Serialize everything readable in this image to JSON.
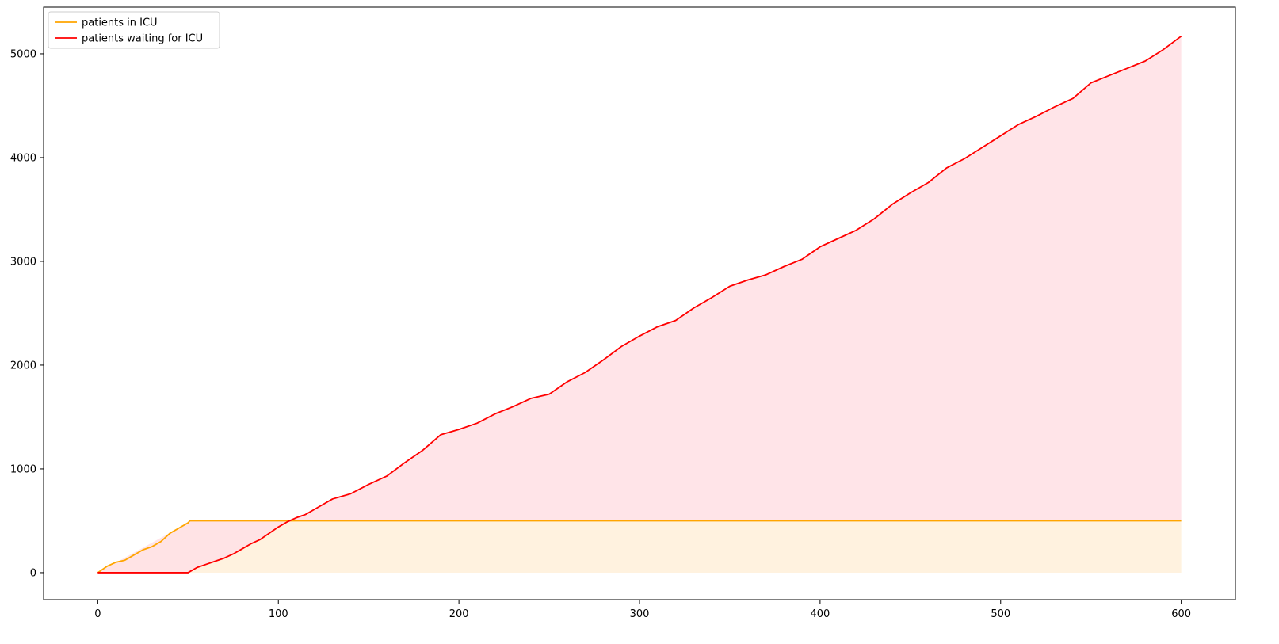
{
  "chart_data": {
    "type": "line",
    "title": "",
    "xlabel": "",
    "ylabel": "",
    "xlim": [
      -30,
      630
    ],
    "ylim": [
      -260,
      5450
    ],
    "xticks": [
      0,
      100,
      200,
      300,
      400,
      500,
      600
    ],
    "yticks": [
      0,
      1000,
      2000,
      3000,
      4000,
      5000
    ],
    "grid": false,
    "legend": {
      "placement": "top-left",
      "entries": [
        "patients in ICU",
        "patients waiting for ICU"
      ]
    },
    "fill_between": [
      {
        "series": "patients in ICU",
        "baseline": 0,
        "color": "#fff2df"
      },
      {
        "series": "patients waiting for ICU",
        "baseline": "patients in ICU",
        "color": "#ffe1e5"
      }
    ],
    "series": [
      {
        "name": "patients in ICU",
        "color": "#ffa500",
        "x": [
          0,
          5,
          10,
          15,
          20,
          25,
          30,
          35,
          40,
          45,
          50,
          51,
          60,
          100,
          200,
          300,
          400,
          500,
          600
        ],
        "y": [
          0,
          60,
          100,
          120,
          170,
          220,
          250,
          300,
          380,
          430,
          480,
          500,
          500,
          500,
          500,
          500,
          500,
          500,
          500
        ]
      },
      {
        "name": "patients waiting for ICU",
        "color": "#ff0000",
        "x": [
          0,
          50,
          52,
          55,
          60,
          65,
          70,
          75,
          80,
          85,
          90,
          95,
          100,
          105,
          110,
          115,
          120,
          125,
          130,
          140,
          150,
          160,
          170,
          180,
          190,
          200,
          210,
          220,
          230,
          240,
          250,
          260,
          270,
          280,
          290,
          300,
          310,
          320,
          330,
          340,
          350,
          360,
          370,
          380,
          390,
          400,
          410,
          420,
          430,
          440,
          450,
          460,
          470,
          480,
          490,
          500,
          510,
          520,
          530,
          540,
          550,
          560,
          570,
          580,
          590,
          600
        ],
        "y": [
          0,
          0,
          20,
          50,
          80,
          110,
          140,
          180,
          230,
          280,
          320,
          380,
          440,
          490,
          530,
          560,
          610,
          660,
          710,
          760,
          850,
          930,
          1060,
          1180,
          1330,
          1380,
          1440,
          1530,
          1600,
          1680,
          1720,
          1840,
          1930,
          2050,
          2180,
          2280,
          2370,
          2430,
          2550,
          2650,
          2760,
          2820,
          2870,
          2950,
          3020,
          3140,
          3220,
          3300,
          3410,
          3550,
          3660,
          3760,
          3900,
          3990,
          4100,
          4210,
          4320,
          4400,
          4490,
          4570,
          4720,
          4790,
          4860,
          4930,
          5040,
          5170
        ]
      }
    ]
  }
}
